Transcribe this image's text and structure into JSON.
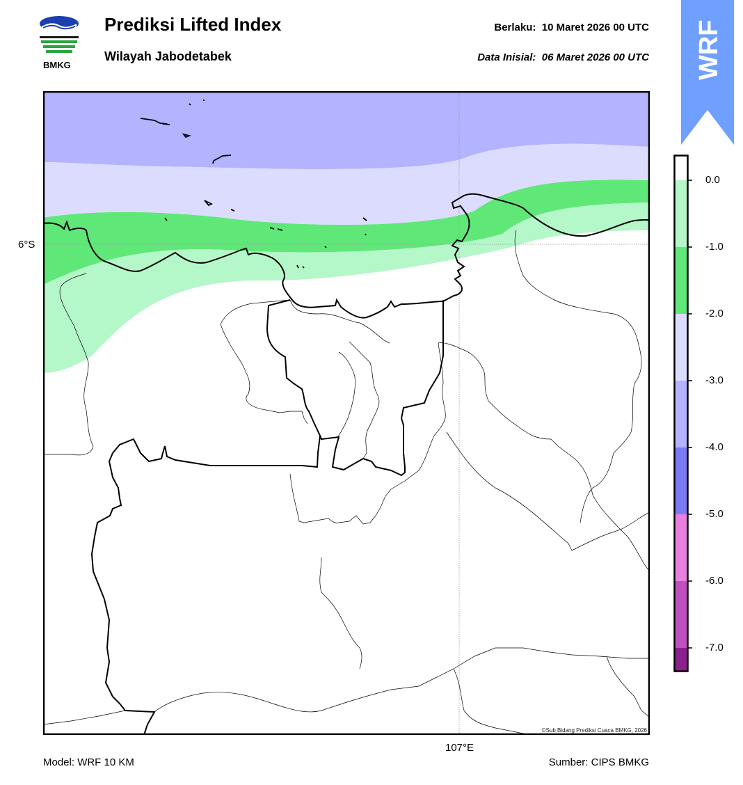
{
  "header": {
    "title": "Prediksi Lifted Index",
    "subtitle": "Wilayah Jabodetabek",
    "valid_label": "Berlaku:",
    "valid_value": "10 Maret 2026 00 UTC",
    "init_label": "Data Inisial:",
    "init_value": "06 Maret 2026 00 UTC"
  },
  "logo": {
    "text": "BMKG",
    "icon": "bmkg-logo"
  },
  "badge": {
    "text": "WRF",
    "color": "#6fa0ff"
  },
  "map": {
    "lat_label": "6°S",
    "lon_label": "107°E",
    "copyright": "©Sub Bidang Prediksi Cuaca BMKG, 2026"
  },
  "colorbar": {
    "labels": [
      "0.0",
      "-1.0",
      "-2.0",
      "-3.0",
      "-4.0",
      "-5.0",
      "-6.0",
      "-7.0"
    ],
    "colors": [
      "#ffffff",
      "#b4f7c8",
      "#5fe878",
      "#dcdcff",
      "#b3b3ff",
      "#7b7bf5",
      "#e880e0",
      "#c050c0",
      "#8c208c"
    ]
  },
  "footer": {
    "model": "Model: WRF 10 KM",
    "source": "Sumber: CIPS BMKG"
  }
}
